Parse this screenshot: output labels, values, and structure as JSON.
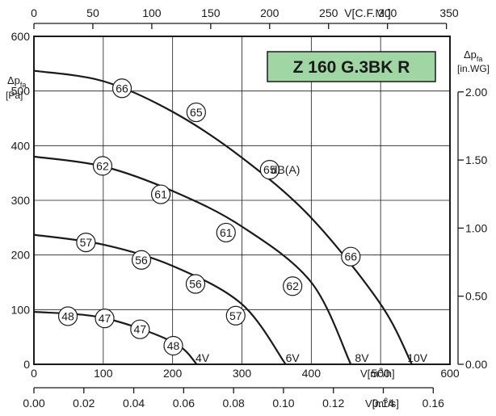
{
  "chart_data": {
    "type": "line",
    "title": "Z 160 G.3BK R",
    "colors": {
      "title_box_fill": "#9fd6a3",
      "title_box_stroke": "#1a1a1a",
      "axes": "#1a1a1a",
      "grid": "#1a1a1a",
      "curve": "#1a1a1a"
    },
    "grid": true,
    "axes": {
      "x_bottom": {
        "label": "V[m³/h]",
        "lim": [
          0,
          600
        ],
        "ticks": [
          0,
          100,
          200,
          300,
          400,
          500,
          600
        ],
        "tick_labels": [
          "0",
          "100",
          "200",
          "300",
          "400",
          "500",
          "600"
        ]
      },
      "x_bottom2": {
        "label": "V[m³/s]",
        "lim": [
          0,
          0.1667
        ],
        "ticks": [
          0,
          0.02,
          0.04,
          0.06,
          0.08,
          0.1,
          0.12,
          0.14,
          0.16
        ],
        "tick_labels": [
          "0.00",
          "0.02",
          "0.04",
          "0.06",
          "0.08",
          "0.10",
          "0.12",
          "0.14",
          "0.16"
        ]
      },
      "x_top": {
        "label": "V[C.F.M.]",
        "lim": [
          0,
          353
        ],
        "ticks": [
          0,
          50,
          100,
          150,
          200,
          250,
          300,
          350
        ],
        "tick_labels": [
          "0",
          "50",
          "100",
          "150",
          "200",
          "250",
          "300",
          "350"
        ]
      },
      "y_left": {
        "label_main": "Δp",
        "label_sub": "fa",
        "unit": "[Pa]",
        "lim": [
          0,
          600
        ],
        "ticks": [
          0,
          100,
          200,
          300,
          400,
          500,
          600
        ],
        "tick_labels": [
          "0",
          "100",
          "200",
          "300",
          "400",
          "500",
          "600"
        ]
      },
      "y_right": {
        "label_main": "Δp",
        "label_sub": "fa",
        "unit": "[in.WG]",
        "lim": [
          0,
          2.408
        ],
        "ticks": [
          0,
          0.5,
          1.0,
          1.5,
          2.0
        ],
        "tick_labels": [
          "0.00",
          "0.50",
          "1.00",
          "1.50",
          "2.00"
        ]
      }
    },
    "series": [
      {
        "name": "10V",
        "x": [
          0,
          100,
          200,
          300,
          400,
          500,
          545
        ],
        "y": [
          537,
          518,
          462,
          378,
          268,
          110,
          0
        ]
      },
      {
        "name": "8V",
        "x": [
          0,
          100,
          200,
          300,
          400,
          457
        ],
        "y": [
          380,
          362,
          317,
          252,
          150,
          0
        ]
      },
      {
        "name": "6V",
        "x": [
          0,
          100,
          200,
          300,
          363
        ],
        "y": [
          237,
          219,
          180,
          110,
          0
        ]
      },
      {
        "name": "4V",
        "x": [
          0,
          100,
          200,
          235
        ],
        "y": [
          96,
          85,
          41,
          0
        ]
      }
    ],
    "noise_markers": [
      {
        "label": "66",
        "x": 127,
        "y": 505
      },
      {
        "label": "65",
        "x": 234,
        "y": 461
      },
      {
        "label": "65",
        "x": 340,
        "y": 356
      },
      {
        "label": "66",
        "x": 457,
        "y": 197
      },
      {
        "label": "62",
        "x": 99,
        "y": 363
      },
      {
        "label": "61",
        "x": 183,
        "y": 311
      },
      {
        "label": "61",
        "x": 277,
        "y": 241
      },
      {
        "label": "62",
        "x": 373,
        "y": 143
      },
      {
        "label": "57",
        "x": 75,
        "y": 223
      },
      {
        "label": "56",
        "x": 155,
        "y": 191
      },
      {
        "label": "56",
        "x": 233,
        "y": 147
      },
      {
        "label": "57",
        "x": 291,
        "y": 89
      },
      {
        "label": "48",
        "x": 49,
        "y": 88
      },
      {
        "label": "47",
        "x": 102,
        "y": 84
      },
      {
        "label": "47",
        "x": 153,
        "y": 64
      },
      {
        "label": "48",
        "x": 201,
        "y": 34
      }
    ],
    "annotations": [
      {
        "text": "dB(A)",
        "x": 363,
        "y": 356
      },
      {
        "text": "10V",
        "x": 553,
        "y": 12
      },
      {
        "text": "8V",
        "x": 473,
        "y": 12
      },
      {
        "text": "6V",
        "x": 373,
        "y": 12
      },
      {
        "text": "4V",
        "x": 243,
        "y": 12
      }
    ]
  }
}
